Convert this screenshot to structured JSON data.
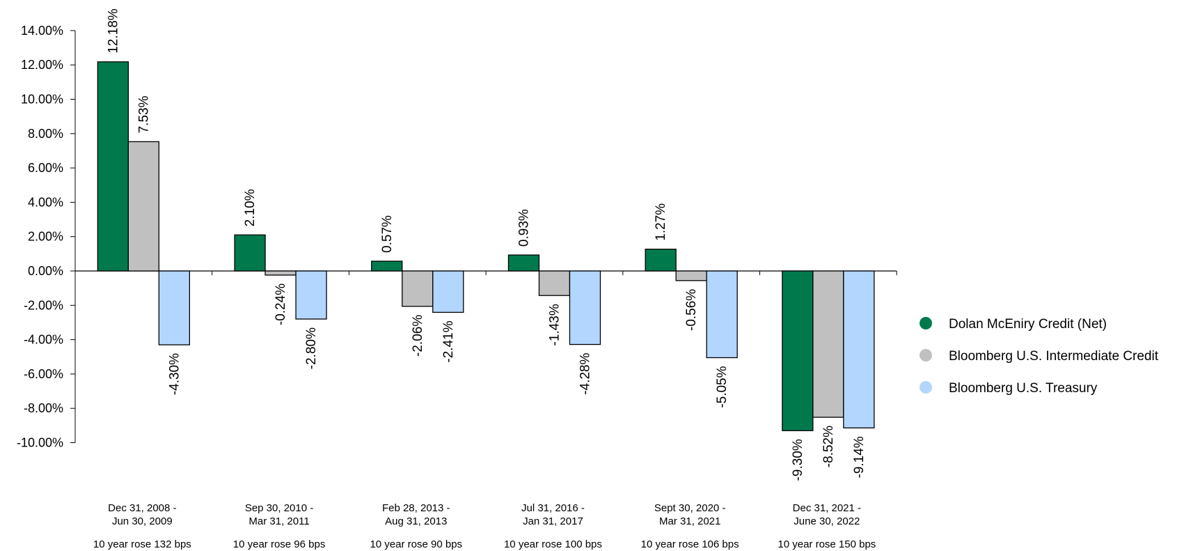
{
  "chart_data": {
    "type": "bar",
    "categories": [
      [
        "Dec 31, 2008 -",
        "Jun 30, 2009"
      ],
      [
        "Sep 30, 2010 -",
        "Mar 31, 2011"
      ],
      [
        "Feb 28, 2013 -",
        "Aug 31, 2013"
      ],
      [
        "Jul 31, 2016 -",
        "Jan 31, 2017"
      ],
      [
        "Sept 30, 2020 -",
        "Mar 31, 2021"
      ],
      [
        "Dec 31, 2021 -",
        "June 30, 2022"
      ]
    ],
    "notes": [
      "10 year rose 132 bps",
      "10 year rose 96  bps",
      "10 year rose 90 bps",
      "10 year rose 100 bps",
      "10 year rose 106 bps",
      "10 year rose 150 bps"
    ],
    "series": [
      {
        "name": "Dolan McEniry Credit (Net)",
        "color": "#007a4d",
        "values": [
          12.18,
          2.1,
          0.57,
          0.93,
          1.27,
          -9.3
        ],
        "labels": [
          "12.18%",
          "2.10%",
          "0.57%",
          "0.93%",
          "1.27%",
          "-9.30%"
        ]
      },
      {
        "name": "Bloomberg U.S. Intermediate Credit",
        "color": "#c0c0c0",
        "values": [
          7.53,
          -0.24,
          -2.06,
          -1.43,
          -0.56,
          -8.52
        ],
        "labels": [
          "7.53%",
          "-0.24%",
          "-2.06%",
          "-1.43%",
          "-0.56%",
          "-8.52%"
        ]
      },
      {
        "name": "Bloomberg U.S. Treasury",
        "color": "#b3d6ff",
        "values": [
          -4.3,
          -2.8,
          -2.41,
          -4.28,
          -5.05,
          -9.14
        ],
        "labels": [
          "-4.30%",
          "-2.80%",
          "-2.41%",
          "-4.28%",
          "-5.05%",
          "-9.14%"
        ]
      }
    ],
    "yticks": [
      "14.00%",
      "12.00%",
      "10.00%",
      "8.00%",
      "6.00%",
      "4.00%",
      "2.00%",
      "0.00%",
      "-2.00%",
      "-4.00%",
      "-6.00%",
      "-8.00%",
      "-10.00%"
    ],
    "ytick_values": [
      14,
      12,
      10,
      8,
      6,
      4,
      2,
      0,
      -2,
      -4,
      -6,
      -8,
      -10
    ],
    "ylim": [
      -10,
      14
    ],
    "title": "",
    "xlabel": "",
    "ylabel": "",
    "legend_position": "right",
    "grid": false
  }
}
